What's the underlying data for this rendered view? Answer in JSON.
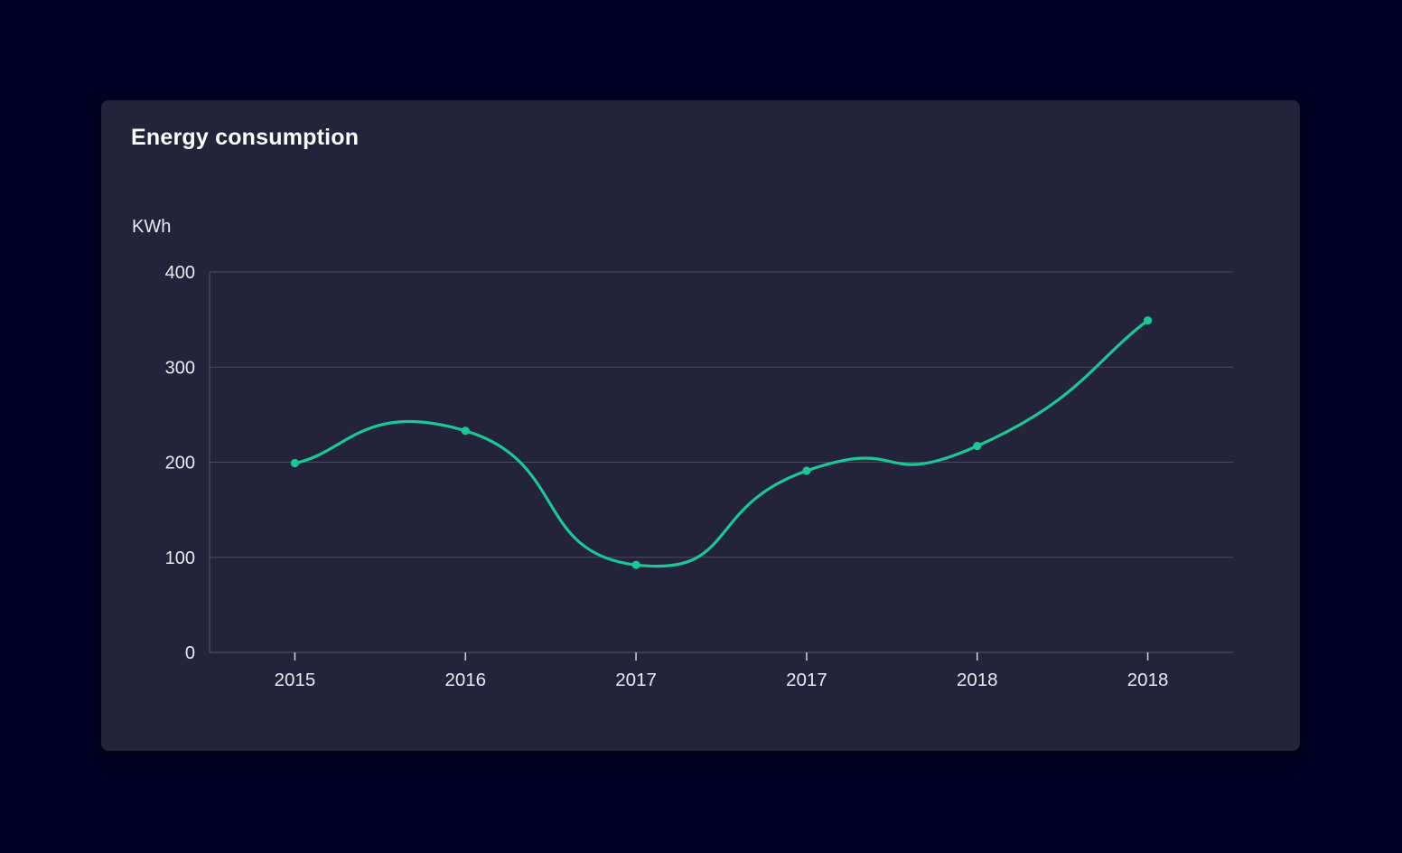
{
  "card": {
    "title": "Energy consumption"
  },
  "chart_data": {
    "type": "line",
    "title": "Energy consumption",
    "xlabel": "",
    "ylabel": "KWh",
    "categories": [
      "2015",
      "2016",
      "2017",
      "2017",
      "2018",
      "2018"
    ],
    "series": [
      {
        "name": "Energy consumption",
        "values": [
          199,
          233,
          92,
          191,
          217,
          349
        ]
      }
    ],
    "ylim": [
      0,
      400
    ],
    "yticks": [
      0,
      100,
      200,
      300,
      400
    ],
    "grid": "horizontal",
    "smooth": true,
    "show_markers": true,
    "legend_position": "none",
    "colors": {
      "page_background": "#000024",
      "card_background": "#23233C",
      "title_text": "#FFFFFF",
      "tick_label": "#E9E9EF",
      "axis_unit_label": "#E9E9EF",
      "grid_line": "#4B4B64",
      "axis_line": "#55556E",
      "tick_mark": "#C9C9D4",
      "line": "#1CC795",
      "marker": "#1CC795"
    }
  }
}
